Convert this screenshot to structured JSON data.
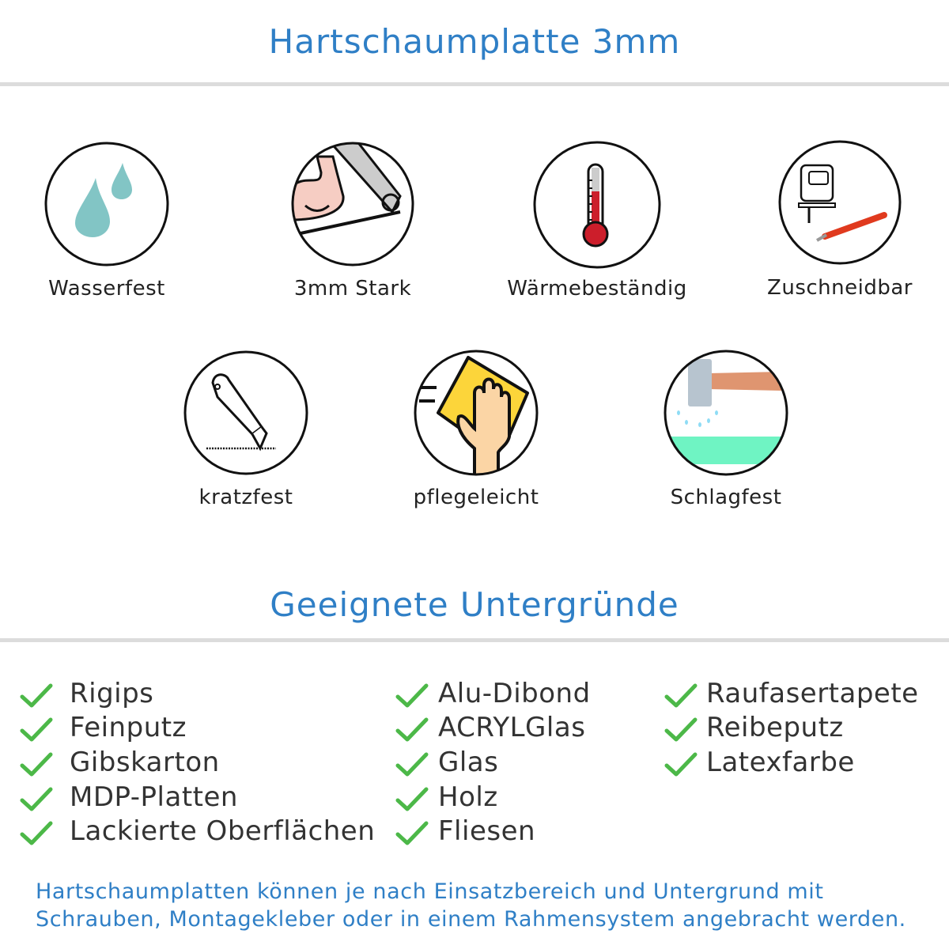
{
  "header": {
    "title": "Hartschaumplatte 3mm"
  },
  "features": [
    {
      "label": "Wasserfest",
      "icon": "water-drops-icon"
    },
    {
      "label": "3mm Stark",
      "icon": "strong-arm-icon"
    },
    {
      "label": "Wärmebeständig",
      "icon": "thermometer-icon"
    },
    {
      "label": "Zuschneidbar",
      "icon": "jigsaw-knife-icon"
    },
    {
      "label": "kratzfest",
      "icon": "cutter-knife-icon"
    },
    {
      "label": "pflegeleicht",
      "icon": "hand-cloth-icon"
    },
    {
      "label": "Schlagfest",
      "icon": "hammer-icon"
    }
  ],
  "surfaces": {
    "title": "Geeignete Untergründe",
    "columns": [
      [
        "Rigips",
        "Feinputz",
        "Gibskarton",
        "MDP-Platten",
        "Lackierte Oberflächen"
      ],
      [
        "Alu-Dibond",
        "ACRYLGlas",
        "Glas",
        "Holz",
        "Fliesen"
      ],
      [
        "Raufasertapete",
        "Reibeputz",
        "Latexfarbe"
      ]
    ],
    "check_color": "#4cb848"
  },
  "footer": {
    "line1": "Hartschaumplatten können je nach Einsatzbereich und Untergrund mit",
    "line2": "Schrauben, Montagekleber oder in einem Rahmensystem angebracht werden."
  },
  "colors": {
    "accent": "#2f7fc6"
  }
}
